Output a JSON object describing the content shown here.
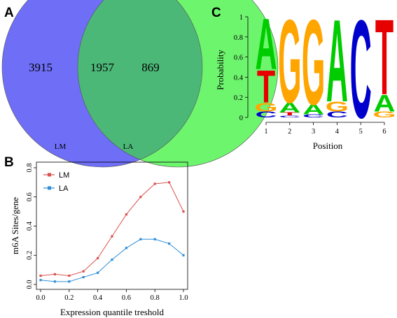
{
  "panels": {
    "a": {
      "letter": "A",
      "venn": {
        "left": {
          "label": "LM",
          "only_count": "3915",
          "color": "#6e6ef7"
        },
        "right": {
          "label": "LA",
          "only_count": "869",
          "color": "#6ef56e"
        },
        "overlap": {
          "count": "1957",
          "color": "#4cb878"
        }
      }
    },
    "b": {
      "letter": "B",
      "chart_data": {
        "type": "line",
        "xlabel": "Expression quantile treshold",
        "ylabel": "m6A Sites/gene",
        "xlim": [
          0,
          1.0
        ],
        "ylim": [
          0,
          0.8
        ],
        "xticks": [
          "0.0",
          "0.2",
          "0.4",
          "0.6",
          "0.8",
          "1.0"
        ],
        "yticks": [
          "0.0",
          "0.2",
          "0.4",
          "0.6",
          "0.8"
        ],
        "x": [
          0.0,
          0.1,
          0.2,
          0.3,
          0.4,
          0.5,
          0.6,
          0.7,
          0.8,
          0.9,
          1.0
        ],
        "series": [
          {
            "name": "LM",
            "color": "#d9534f",
            "values": [
              0.06,
              0.07,
              0.06,
              0.09,
              0.18,
              0.33,
              0.48,
              0.6,
              0.69,
              0.7,
              0.5
            ]
          },
          {
            "name": "LA",
            "color": "#2f8fd8",
            "values": [
              0.03,
              0.02,
              0.02,
              0.05,
              0.08,
              0.17,
              0.25,
              0.31,
              0.31,
              0.28,
              0.2
            ]
          }
        ],
        "legend": "top-left",
        "grid": false
      }
    },
    "c": {
      "letter": "C",
      "chart_data": {
        "type": "sequence-logo",
        "xlabel": "Position",
        "ylabel": "Probability",
        "ylim": [
          0,
          1
        ],
        "yticks": [
          "0",
          "0.2",
          "0.4",
          "0.6",
          "0.8",
          "1"
        ],
        "positions": [
          "1",
          "2",
          "3",
          "4",
          "5",
          "6"
        ],
        "letter_colors": {
          "A": "#00cc00",
          "C": "#0000cc",
          "G": "#ffa500",
          "T": "#e60000"
        },
        "stacks": [
          [
            {
              "base": "C",
              "p": 0.06
            },
            {
              "base": "G",
              "p": 0.09
            },
            {
              "base": "T",
              "p": 0.33
            },
            {
              "base": "A",
              "p": 0.52
            }
          ],
          [
            {
              "base": "C",
              "p": 0.02
            },
            {
              "base": "T",
              "p": 0.03
            },
            {
              "base": "A",
              "p": 0.1
            },
            {
              "base": "G",
              "p": 0.85
            }
          ],
          [
            {
              "base": "C",
              "p": 0.03
            },
            {
              "base": "A",
              "p": 0.1
            },
            {
              "base": "G",
              "p": 0.87
            }
          ],
          [
            {
              "base": "C",
              "p": 0.06
            },
            {
              "base": "G",
              "p": 0.1
            },
            {
              "base": "A",
              "p": 0.84
            }
          ],
          [
            {
              "base": "C",
              "p": 1.0
            }
          ],
          [
            {
              "base": "G",
              "p": 0.06
            },
            {
              "base": "A",
              "p": 0.17
            },
            {
              "base": "T",
              "p": 0.77
            }
          ]
        ]
      }
    }
  }
}
